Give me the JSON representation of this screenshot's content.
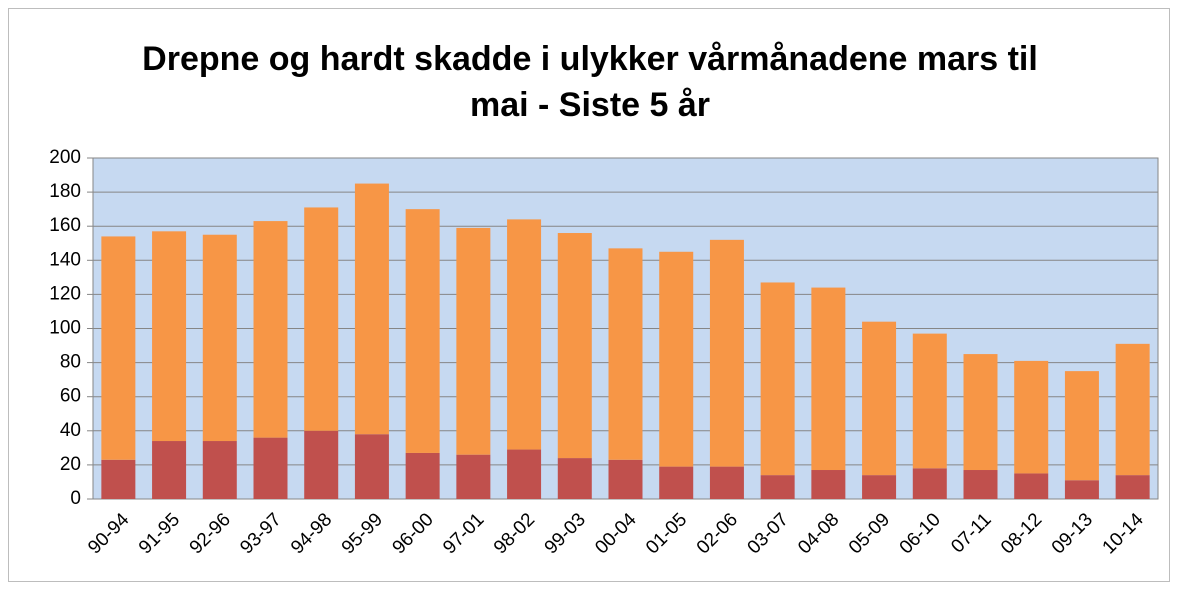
{
  "chart_data": {
    "type": "bar",
    "stacked": true,
    "title": "Drepne og hardt skadde i ulykker vårmånadene mars til mai - Siste 5 år",
    "categories": [
      "90-94",
      "91-95",
      "92-96",
      "93-97",
      "94-98",
      "95-99",
      "96-00",
      "97-01",
      "98-02",
      "99-03",
      "00-04",
      "01-05",
      "02-06",
      "03-07",
      "04-08",
      "05-09",
      "06-10",
      "07-11",
      "08-12",
      "09-13",
      "10-14"
    ],
    "series": [
      {
        "color": "#c0504d",
        "values": [
          23,
          34,
          34,
          36,
          40,
          38,
          27,
          26,
          29,
          24,
          23,
          19,
          19,
          14,
          17,
          14,
          18,
          17,
          15,
          11,
          14
        ]
      },
      {
        "color": "#f79646",
        "values": [
          131,
          123,
          121,
          127,
          131,
          147,
          143,
          133,
          135,
          132,
          124,
          126,
          133,
          113,
          107,
          90,
          79,
          68,
          66,
          64,
          77
        ]
      }
    ],
    "ylim": [
      0,
      200
    ],
    "yticks": [
      0,
      20,
      40,
      60,
      80,
      100,
      120,
      140,
      160,
      180,
      200
    ],
    "grid": true,
    "plot_background": "#c6d9f1"
  }
}
